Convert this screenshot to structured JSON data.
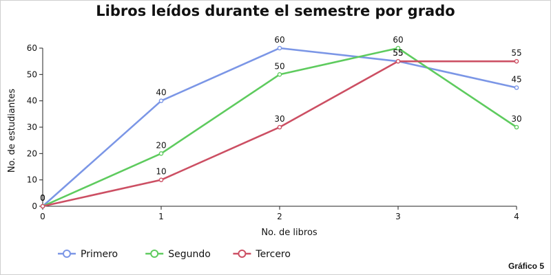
{
  "chart_data": {
    "type": "line",
    "title": "Libros leídos durante el semestre por grado",
    "xlabel": "No. de libros",
    "ylabel": "No. de estudiantes",
    "x": [
      0,
      1,
      2,
      3,
      4
    ],
    "xlim": [
      0,
      4
    ],
    "ylim": [
      0,
      60
    ],
    "yticks": [
      0,
      10,
      20,
      30,
      40,
      50,
      60
    ],
    "legend_position": "bottom-left",
    "series": [
      {
        "name": "Primero",
        "color": "#7b96e6",
        "values": [
          0,
          40,
          60,
          55,
          45
        ]
      },
      {
        "name": "Segundo",
        "color": "#5ecb5e",
        "values": [
          0,
          20,
          50,
          60,
          30
        ]
      },
      {
        "name": "Tercero",
        "color": "#cc4f63",
        "values": [
          0,
          10,
          30,
          55,
          55
        ]
      }
    ]
  },
  "footer": {
    "label": "Gráfico 5"
  }
}
